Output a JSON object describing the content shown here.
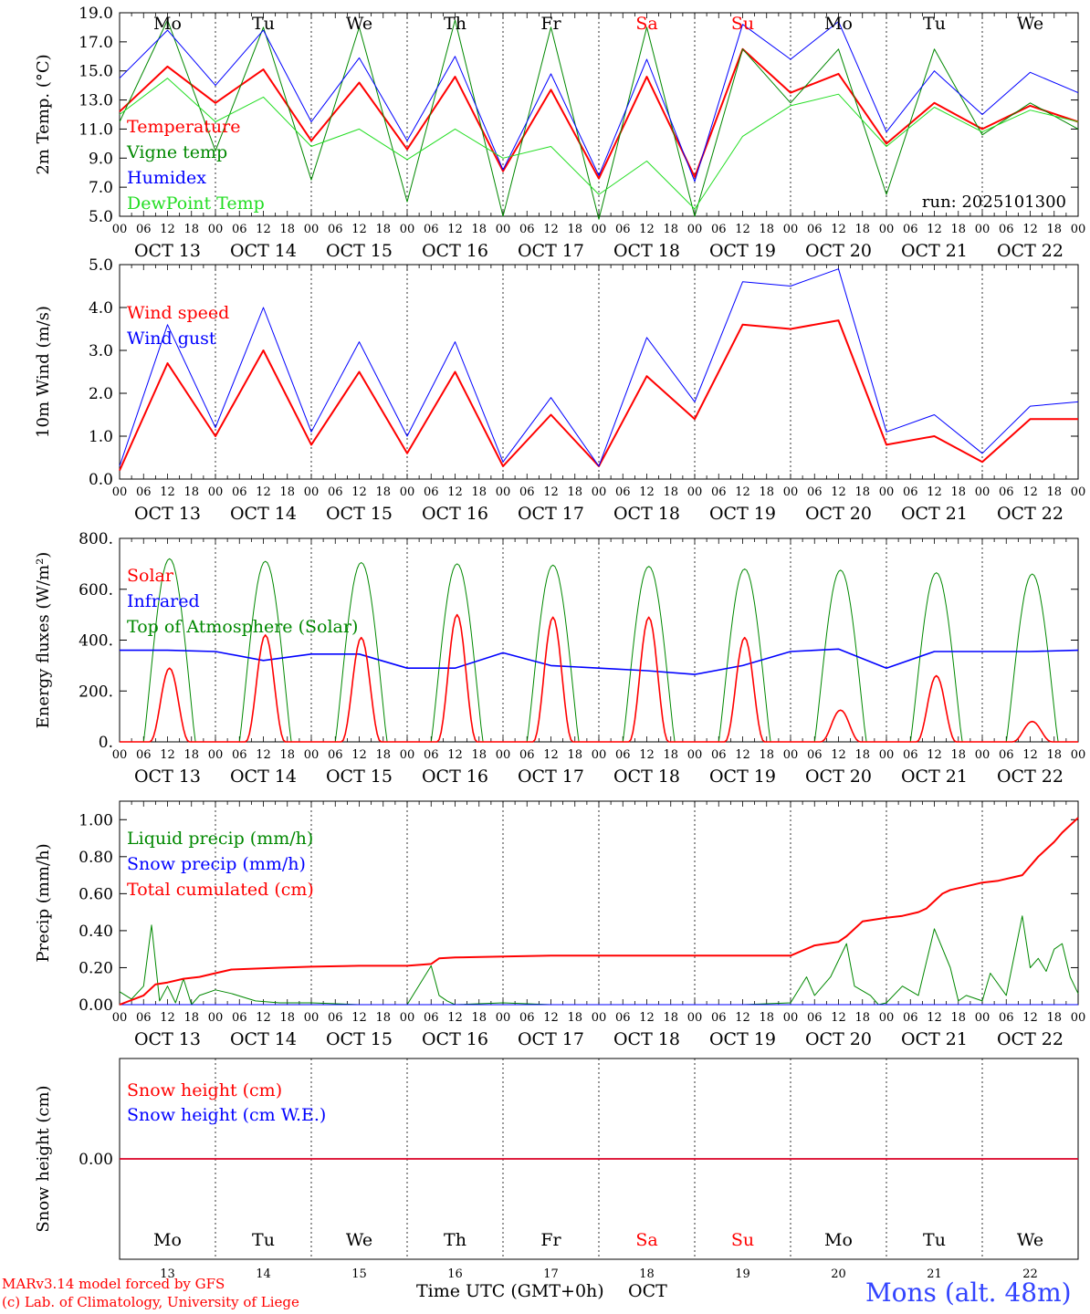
{
  "meta": {
    "run_label": "run: 2025101300",
    "footer_left_line1": "MARv3.14 model forced by GFS",
    "footer_left_line2": "(c) Lab. of Climatology, University of Liege",
    "xaxis_label": "Time UTC (GMT+0h)",
    "month_label": "OCT",
    "location": "Mons (alt. 48m)",
    "colors": {
      "red": "#ff0000",
      "green": "#008800",
      "blue": "#0000ff",
      "lightgreen": "#22dd22",
      "weekend": "#ff0000"
    }
  },
  "days": {
    "weekdays": [
      "Mo",
      "Tu",
      "We",
      "Th",
      "Fr",
      "Sa",
      "Su",
      "Mo",
      "Tu",
      "We"
    ],
    "weekend_flags": [
      false,
      false,
      false,
      false,
      false,
      true,
      true,
      false,
      false,
      false
    ],
    "day_labels": [
      "OCT 13",
      "OCT 14",
      "OCT 15",
      "OCT 16",
      "OCT 17",
      "OCT 18",
      "OCT 19",
      "OCT 20",
      "OCT 21",
      "OCT 22"
    ],
    "day_numbers": [
      "13",
      "14",
      "15",
      "16",
      "17",
      "18",
      "19",
      "20",
      "21",
      "22"
    ],
    "hour_ticks": [
      "00",
      "06",
      "12",
      "18"
    ],
    "final_tick": "00"
  },
  "chart_data": [
    {
      "type": "line",
      "id": "temp",
      "ylabel": "2m Temp. (°C)",
      "ylim": [
        5,
        19
      ],
      "yticks": [
        "5.0",
        "7.0",
        "9.0",
        "11.0",
        "13.0",
        "15.0",
        "17.0",
        "19.0"
      ],
      "x_hours": [
        0,
        12,
        24,
        36,
        48,
        60,
        72,
        84,
        96,
        108,
        120,
        132,
        144,
        156,
        168,
        180,
        192,
        204,
        216,
        228,
        240
      ],
      "series": [
        {
          "name": "Temperature",
          "color": "#ff0000",
          "values": [
            12.2,
            15.3,
            12.8,
            15.1,
            10.2,
            14.2,
            9.6,
            14.6,
            8.1,
            13.7,
            7.6,
            14.6,
            7.7,
            16.5,
            13.5,
            14.8,
            10.0,
            12.8,
            11.0,
            12.6,
            11.5
          ]
        },
        {
          "name": "Vigne temp",
          "color": "#008800",
          "values": [
            11.5,
            18.5,
            9.5,
            18.0,
            7.5,
            18.0,
            6.0,
            18.5,
            5.0,
            18.0,
            4.8,
            18.0,
            5.0,
            16.5,
            12.8,
            16.5,
            6.5,
            16.5,
            10.6,
            12.8,
            11.0
          ]
        },
        {
          "name": "Humidex",
          "color": "#0000ff",
          "values": [
            14.5,
            17.8,
            14.0,
            17.8,
            11.5,
            15.9,
            10.2,
            16.0,
            8.2,
            14.8,
            7.8,
            15.8,
            7.4,
            18.2,
            15.8,
            18.4,
            10.8,
            15.0,
            12.0,
            14.9,
            13.5
          ]
        },
        {
          "name": "DewPoint Temp",
          "color": "#22dd22",
          "values": [
            12.0,
            14.5,
            11.5,
            13.2,
            9.8,
            11.0,
            8.9,
            11.0,
            9.0,
            9.8,
            6.5,
            8.8,
            5.5,
            10.5,
            12.6,
            13.4,
            9.8,
            12.5,
            10.8,
            12.3,
            11.5
          ]
        }
      ]
    },
    {
      "type": "line",
      "id": "wind",
      "ylabel": "10m Wind (m/s)",
      "ylim": [
        0,
        5
      ],
      "yticks": [
        "0.0",
        "1.0",
        "2.0",
        "3.0",
        "4.0",
        "5.0"
      ],
      "x_hours": [
        0,
        12,
        24,
        36,
        48,
        60,
        72,
        84,
        96,
        108,
        120,
        132,
        144,
        156,
        168,
        180,
        192,
        204,
        216,
        228,
        240
      ],
      "series": [
        {
          "name": "Wind speed",
          "color": "#ff0000",
          "values": [
            0.2,
            2.7,
            1.0,
            3.0,
            0.8,
            2.5,
            0.6,
            2.5,
            0.3,
            1.5,
            0.3,
            2.4,
            1.4,
            3.6,
            3.5,
            3.7,
            0.8,
            1.0,
            0.4,
            1.4,
            1.4
          ]
        },
        {
          "name": "Wind gust",
          "color": "#0000ff",
          "values": [
            0.3,
            3.6,
            1.2,
            4.0,
            1.1,
            3.2,
            1.0,
            3.2,
            0.4,
            1.9,
            0.3,
            3.3,
            1.8,
            4.6,
            4.5,
            4.9,
            1.1,
            1.5,
            0.6,
            1.7,
            1.8
          ]
        }
      ]
    },
    {
      "type": "line",
      "id": "energy",
      "ylabel": "Energy fluxes (W/m²)",
      "ylim": [
        0,
        800
      ],
      "yticks": [
        "0.",
        "200.",
        "400.",
        "600.",
        "800."
      ],
      "series": [
        {
          "name": "Solar",
          "color": "#ff0000",
          "daily_peaks": [
            290,
            420,
            410,
            500,
            490,
            490,
            410,
            125,
            260,
            80
          ]
        },
        {
          "name": "Infrared",
          "color": "#0000ff",
          "x_hours": [
            0,
            12,
            24,
            36,
            48,
            60,
            72,
            84,
            96,
            108,
            120,
            132,
            144,
            156,
            168,
            180,
            192,
            204,
            216,
            228,
            240
          ],
          "values": [
            360,
            360,
            355,
            320,
            345,
            345,
            290,
            290,
            350,
            300,
            290,
            280,
            265,
            300,
            355,
            365,
            290,
            355,
            355,
            355,
            360
          ]
        },
        {
          "name": "Top of Atmosphere (Solar)",
          "color": "#008800",
          "daily_peaks": [
            720,
            710,
            705,
            700,
            695,
            690,
            680,
            675,
            665,
            660
          ]
        }
      ]
    },
    {
      "type": "line",
      "id": "precip",
      "ylabel": "Precip (mm/h)",
      "ylim": [
        0,
        1.1
      ],
      "yticks": [
        "0.00",
        "0.20",
        "0.40",
        "0.60",
        "0.80",
        "1.00"
      ],
      "series": [
        {
          "name": "Liquid precip (mm/h)",
          "color": "#008800",
          "x_hours": [
            0,
            3,
            6,
            8,
            10,
            12,
            14,
            16,
            18,
            20,
            24,
            28,
            34,
            40,
            48,
            60,
            72,
            78,
            80,
            82,
            84,
            96,
            108,
            120,
            132,
            144,
            156,
            168,
            172,
            174,
            178,
            182,
            184,
            188,
            190,
            192,
            196,
            200,
            204,
            208,
            210,
            212,
            216,
            218,
            222,
            226,
            228,
            230,
            232,
            234,
            236,
            238,
            240
          ],
          "values": [
            0.07,
            0.03,
            0.1,
            0.43,
            0.02,
            0.1,
            0.01,
            0.14,
            0.0,
            0.05,
            0.08,
            0.06,
            0.02,
            0.01,
            0.01,
            0.0,
            0.0,
            0.21,
            0.05,
            0.02,
            0.0,
            0.01,
            0.0,
            0.0,
            0.0,
            0.0,
            0.0,
            0.01,
            0.15,
            0.05,
            0.15,
            0.33,
            0.1,
            0.05,
            0.0,
            0.01,
            0.1,
            0.05,
            0.41,
            0.2,
            0.02,
            0.05,
            0.02,
            0.17,
            0.05,
            0.48,
            0.2,
            0.25,
            0.18,
            0.3,
            0.33,
            0.15,
            0.06
          ]
        },
        {
          "name": "Snow precip (mm/h)",
          "color": "#0000ff",
          "x_hours": [
            0,
            240
          ],
          "values": [
            0.0,
            0.0
          ]
        },
        {
          "name": "Total cumulated (cm)",
          "color": "#ff0000",
          "x_hours": [
            0,
            6,
            9,
            12,
            16,
            20,
            24,
            28,
            34,
            40,
            48,
            60,
            72,
            78,
            80,
            84,
            96,
            108,
            120,
            132,
            144,
            156,
            168,
            174,
            180,
            182,
            186,
            192,
            196,
            200,
            202,
            206,
            208,
            212,
            216,
            220,
            224,
            226,
            230,
            234,
            236,
            240
          ],
          "values": [
            0.0,
            0.05,
            0.11,
            0.12,
            0.14,
            0.15,
            0.17,
            0.19,
            0.195,
            0.2,
            0.205,
            0.21,
            0.21,
            0.22,
            0.25,
            0.255,
            0.26,
            0.265,
            0.265,
            0.265,
            0.265,
            0.265,
            0.265,
            0.32,
            0.34,
            0.37,
            0.45,
            0.47,
            0.48,
            0.5,
            0.52,
            0.6,
            0.62,
            0.64,
            0.66,
            0.67,
            0.69,
            0.7,
            0.8,
            0.88,
            0.93,
            1.01
          ]
        }
      ]
    },
    {
      "type": "line",
      "id": "snow",
      "ylabel": "Snow height (cm)",
      "ylim": [
        -1,
        1
      ],
      "yticks": [
        "0.00"
      ],
      "series": [
        {
          "name": "Snow height (cm)",
          "color": "#ff0000",
          "x_hours": [
            0,
            240
          ],
          "values": [
            0.0,
            0.0
          ]
        },
        {
          "name": "Snow height (cm W.E.)",
          "color": "#0000ff",
          "x_hours": [
            0,
            240
          ],
          "values": [
            0.0,
            0.0
          ]
        }
      ]
    }
  ]
}
